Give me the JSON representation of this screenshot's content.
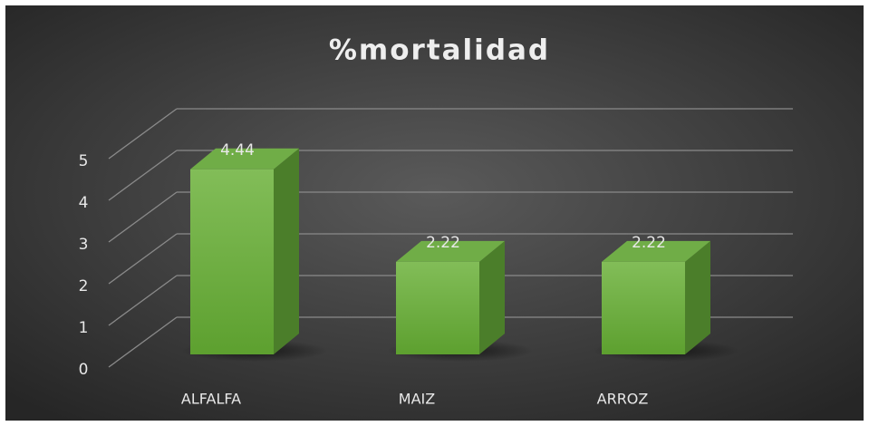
{
  "chart_data": {
    "type": "bar3d",
    "title": "%mortalidad",
    "categories": [
      "ALFALFA",
      "MAIZ",
      "ARROZ"
    ],
    "values": [
      4.44,
      2.22,
      2.22
    ],
    "color": "#70ad47",
    "ylim": [
      0,
      5
    ],
    "yticks": [
      0,
      1,
      2,
      3,
      4,
      5
    ],
    "grid": true
  }
}
